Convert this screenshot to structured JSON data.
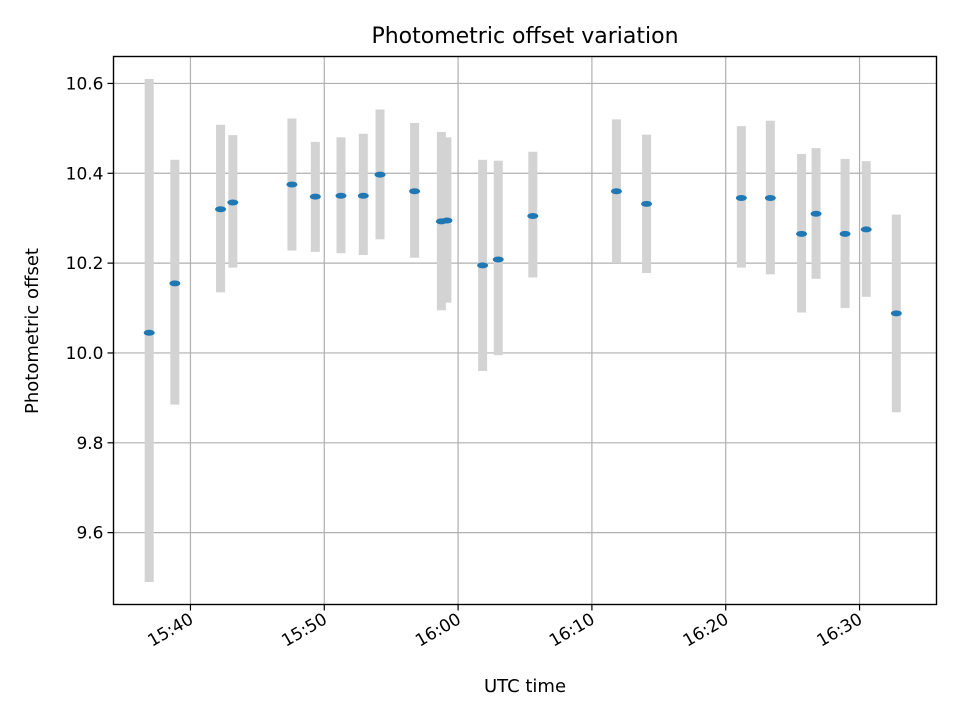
{
  "chart_data": {
    "type": "scatter",
    "title": "Photometric offset variation",
    "xlabel": "UTC time",
    "ylabel": "Photometric offset",
    "x_unit": "HH:MM UTC",
    "xlim": [
      "15:34:15",
      "16:35:45"
    ],
    "ylim": [
      9.44,
      10.66
    ],
    "x_ticks": [
      "15:40",
      "15:50",
      "16:00",
      "16:10",
      "16:20",
      "16:30"
    ],
    "y_ticks": [
      "9.6",
      "9.8",
      "10.0",
      "10.2",
      "10.4",
      "10.6"
    ],
    "grid": true,
    "colors": {
      "marker": "#1f77b4",
      "errorbar": "#d3d3d3",
      "grid": "#b0b0b0"
    },
    "series": [
      {
        "points": [
          {
            "x": "15:36:55",
            "y": 10.045,
            "ymin": 9.49,
            "ymax": 10.61
          },
          {
            "x": "15:38:50",
            "y": 10.155,
            "ymin": 9.885,
            "ymax": 10.43
          },
          {
            "x": "15:42:15",
            "y": 10.32,
            "ymin": 10.135,
            "ymax": 10.508
          },
          {
            "x": "15:43:10",
            "y": 10.335,
            "ymin": 10.19,
            "ymax": 10.485
          },
          {
            "x": "15:47:35",
            "y": 10.375,
            "ymin": 10.228,
            "ymax": 10.522
          },
          {
            "x": "15:49:20",
            "y": 10.348,
            "ymin": 10.225,
            "ymax": 10.47
          },
          {
            "x": "15:51:15",
            "y": 10.35,
            "ymin": 10.222,
            "ymax": 10.48
          },
          {
            "x": "15:52:55",
            "y": 10.35,
            "ymin": 10.218,
            "ymax": 10.488
          },
          {
            "x": "15:54:10",
            "y": 10.397,
            "ymin": 10.253,
            "ymax": 10.542
          },
          {
            "x": "15:56:45",
            "y": 10.36,
            "ymin": 10.212,
            "ymax": 10.512
          },
          {
            "x": "15:58:45",
            "y": 10.293,
            "ymin": 10.095,
            "ymax": 10.492
          },
          {
            "x": "15:59:10",
            "y": 10.295,
            "ymin": 10.112,
            "ymax": 10.48
          },
          {
            "x": "16:01:50",
            "y": 10.195,
            "ymin": 9.96,
            "ymax": 10.43
          },
          {
            "x": "16:03:00",
            "y": 10.208,
            "ymin": 9.995,
            "ymax": 10.428
          },
          {
            "x": "16:05:35",
            "y": 10.305,
            "ymin": 10.168,
            "ymax": 10.448
          },
          {
            "x": "16:11:50",
            "y": 10.36,
            "ymin": 10.2,
            "ymax": 10.52
          },
          {
            "x": "16:14:05",
            "y": 10.332,
            "ymin": 10.178,
            "ymax": 10.486
          },
          {
            "x": "16:21:10",
            "y": 10.345,
            "ymin": 10.19,
            "ymax": 10.505
          },
          {
            "x": "16:23:20",
            "y": 10.345,
            "ymin": 10.175,
            "ymax": 10.517
          },
          {
            "x": "16:25:40",
            "y": 10.265,
            "ymin": 10.09,
            "ymax": 10.443
          },
          {
            "x": "16:26:45",
            "y": 10.31,
            "ymin": 10.165,
            "ymax": 10.456
          },
          {
            "x": "16:28:55",
            "y": 10.265,
            "ymin": 10.1,
            "ymax": 10.432
          },
          {
            "x": "16:30:30",
            "y": 10.275,
            "ymin": 10.125,
            "ymax": 10.427
          },
          {
            "x": "16:32:45",
            "y": 10.088,
            "ymin": 9.868,
            "ymax": 10.308
          }
        ]
      }
    ]
  }
}
